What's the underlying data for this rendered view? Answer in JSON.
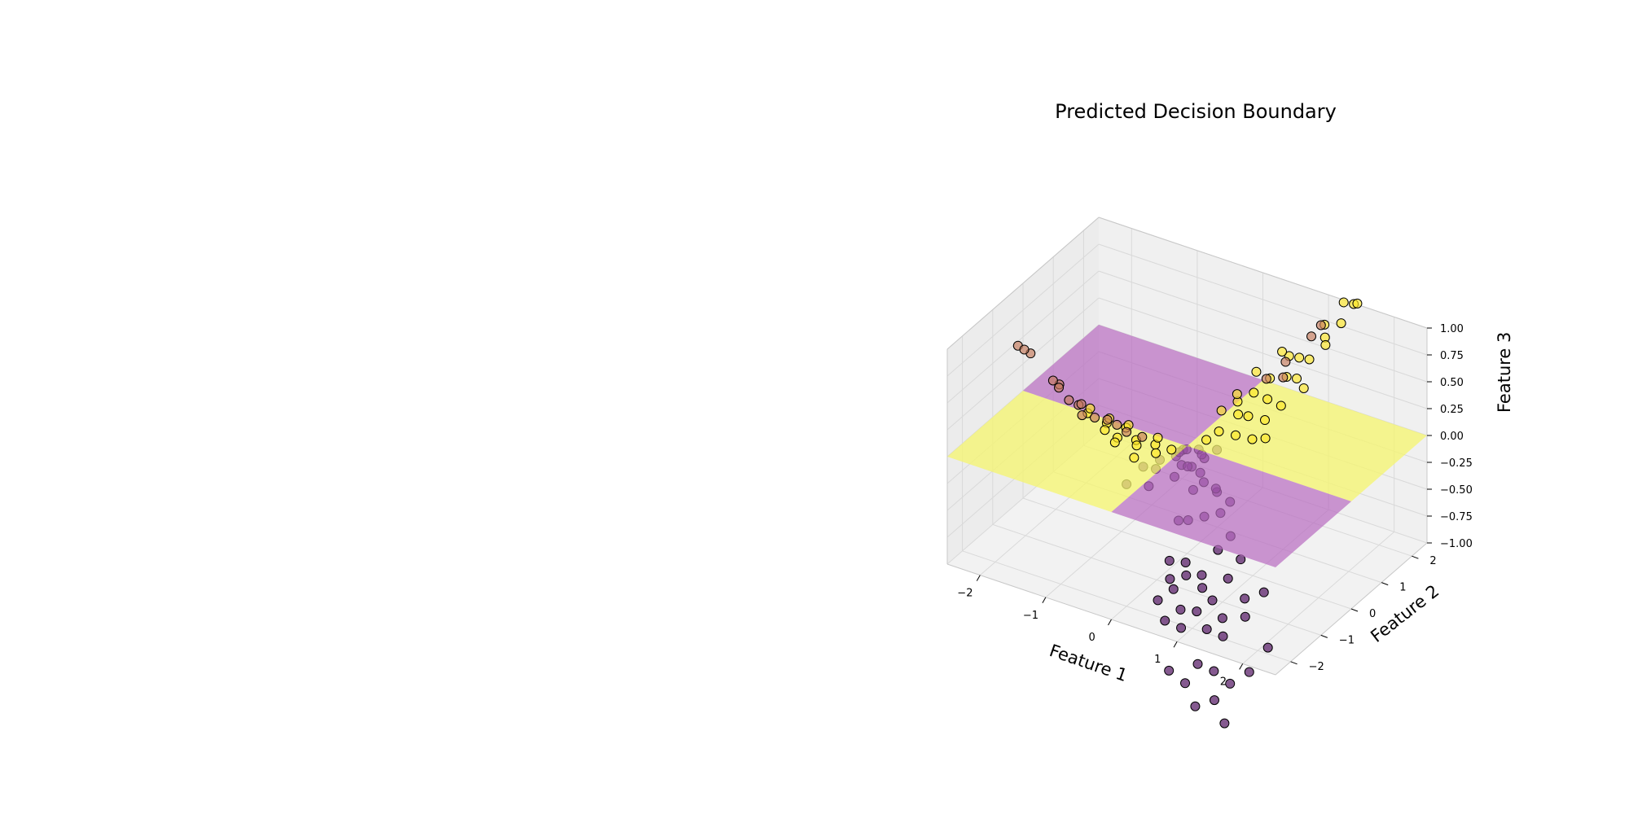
{
  "chart_data": {
    "type": "scatter",
    "projection": "3d",
    "title": "Predicted Decision Boundary",
    "xlabel": "Feature 1",
    "ylabel": "Feature 2",
    "zlabel": "Feature 3",
    "xlim": [
      -2.5,
      2.5
    ],
    "ylim": [
      -2.5,
      2.5
    ],
    "zlim": [
      -1.0,
      1.0
    ],
    "x_ticks": [
      "−2",
      "−1",
      "0",
      "1",
      "2"
    ],
    "y_ticks": [
      "−2",
      "−1",
      "0",
      "1",
      "2"
    ],
    "z_ticks": [
      "−1.00",
      "−0.75",
      "−0.50",
      "−0.25",
      "0.00",
      "0.25",
      "0.50",
      "0.75",
      "1.00"
    ],
    "grid": true,
    "colors": {
      "class_0": "#440154",
      "class_1": "#fde725",
      "boundary_positive": "#f5f56e",
      "boundary_negative": "#b86bc0",
      "pane": "#f2f2f2",
      "grid": "#d9d9d9"
    },
    "decision_surface": {
      "z": 0.0,
      "regions": [
        {
          "x_range": [
            -2.5,
            0.0
          ],
          "y_range": [
            -2.5,
            0.0
          ],
          "class": 1
        },
        {
          "x_range": [
            0.0,
            2.5
          ],
          "y_range": [
            0.0,
            2.5
          ],
          "class": 1
        },
        {
          "x_range": [
            -2.5,
            0.0
          ],
          "y_range": [
            0.0,
            2.5
          ],
          "class": 0
        },
        {
          "x_range": [
            0.0,
            2.5
          ],
          "y_range": [
            -2.5,
            0.0
          ],
          "class": 0
        }
      ]
    },
    "series": [
      {
        "class": 0,
        "points": [
          [
            0.3,
            -0.7,
            -0.85
          ],
          [
            0.5,
            -0.6,
            -0.95
          ],
          [
            0.4,
            -0.9,
            -0.9
          ],
          [
            0.6,
            -0.8,
            -1.0
          ],
          [
            0.7,
            -0.5,
            -0.7
          ],
          [
            0.2,
            -0.4,
            -0.55
          ],
          [
            0.1,
            -0.8,
            -0.85
          ],
          [
            0.8,
            -0.9,
            -1.05
          ],
          [
            0.9,
            -0.6,
            -0.9
          ],
          [
            0.4,
            -0.3,
            -0.5
          ],
          [
            0.6,
            -0.2,
            -0.45
          ],
          [
            0.3,
            -1.1,
            -1.0
          ],
          [
            0.7,
            -1.2,
            -1.1
          ],
          [
            1.0,
            -1.0,
            -1.15
          ],
          [
            0.5,
            -1.3,
            -1.1
          ],
          [
            0.2,
            -1.0,
            -0.95
          ],
          [
            1.2,
            -0.7,
            -1.0
          ],
          [
            0.8,
            -0.3,
            -0.6
          ],
          [
            0.1,
            -0.5,
            -0.55
          ],
          [
            0.5,
            -0.1,
            -0.3
          ],
          [
            0.3,
            -0.1,
            -0.25
          ],
          [
            0.9,
            -1.3,
            -1.2
          ],
          [
            1.1,
            -1.2,
            -1.25
          ],
          [
            0.6,
            -1.5,
            -1.2
          ],
          [
            1.3,
            -0.9,
            -1.1
          ],
          [
            0.4,
            -1.6,
            -1.15
          ],
          [
            0.2,
            -1.4,
            -1.05
          ],
          [
            1.0,
            -0.4,
            -0.75
          ],
          [
            1.4,
            -0.5,
            -0.95
          ],
          [
            0.7,
            -0.1,
            -0.35
          ],
          [
            -0.2,
            0.3,
            -0.15
          ],
          [
            -0.4,
            0.5,
            -0.3
          ],
          [
            -0.3,
            0.8,
            -0.45
          ],
          [
            -0.1,
            0.6,
            -0.2
          ],
          [
            -0.6,
            0.4,
            -0.35
          ],
          [
            -0.5,
            0.9,
            -0.5
          ],
          [
            -0.8,
            0.7,
            -0.55
          ],
          [
            -0.2,
            1.0,
            -0.4
          ],
          [
            -0.7,
            1.1,
            -0.7
          ],
          [
            -0.4,
            1.3,
            -0.65
          ],
          [
            -1.0,
            0.9,
            -0.8
          ],
          [
            -0.9,
            0.5,
            -0.5
          ],
          [
            -0.3,
            1.6,
            -0.85
          ],
          [
            -0.6,
            1.5,
            -0.9
          ],
          [
            -1.2,
            0.6,
            -0.75
          ],
          [
            -0.1,
            1.2,
            -0.35
          ],
          [
            0.9,
            -1.6,
            -1.45
          ],
          [
            1.1,
            -1.5,
            -1.5
          ],
          [
            0.8,
            -1.8,
            -1.6
          ],
          [
            1.2,
            -1.7,
            -1.7
          ],
          [
            1.0,
            -1.9,
            -1.75
          ],
          [
            1.3,
            -1.4,
            -1.6
          ],
          [
            0.6,
            -1.9,
            -1.5
          ],
          [
            1.4,
            -1.8,
            -1.85
          ],
          [
            1.5,
            -1.2,
            -1.5
          ],
          [
            1.6,
            -0.8,
            -1.35
          ],
          [
            0.1,
            -0.2,
            -0.12
          ],
          [
            -0.1,
            0.2,
            -0.1
          ],
          [
            0.2,
            0.05,
            -0.05
          ],
          [
            -0.05,
            -0.15,
            -0.03
          ]
        ]
      },
      {
        "class": 1,
        "points": [
          [
            0.3,
            0.4,
            0.1
          ],
          [
            0.5,
            0.6,
            0.25
          ],
          [
            0.7,
            0.5,
            0.3
          ],
          [
            0.4,
            0.8,
            0.3
          ],
          [
            0.9,
            0.7,
            0.45
          ],
          [
            0.6,
            0.9,
            0.4
          ],
          [
            1.0,
            0.4,
            0.35
          ],
          [
            0.8,
            1.0,
            0.55
          ],
          [
            1.1,
            0.9,
            0.65
          ],
          [
            1.2,
            1.1,
            0.8
          ],
          [
            1.3,
            0.8,
            0.7
          ],
          [
            1.0,
            1.2,
            0.75
          ],
          [
            1.4,
            1.0,
            0.85
          ],
          [
            1.5,
            1.3,
            1.0
          ],
          [
            1.6,
            1.1,
            1.0
          ],
          [
            1.7,
            1.4,
            1.15
          ],
          [
            1.8,
            1.6,
            1.3
          ],
          [
            1.9,
            1.5,
            1.35
          ],
          [
            1.6,
            1.7,
            1.25
          ],
          [
            1.4,
            1.5,
            1.05
          ],
          [
            0.2,
            0.7,
            0.2
          ],
          [
            0.6,
            0.3,
            0.15
          ],
          [
            1.2,
            0.5,
            0.5
          ],
          [
            0.9,
            0.2,
            0.2
          ],
          [
            0.5,
            1.2,
            0.5
          ],
          [
            0.3,
            1.0,
            0.3
          ],
          [
            1.5,
            0.6,
            0.7
          ],
          [
            0.8,
            1.4,
            0.7
          ],
          [
            1.1,
            0.2,
            0.25
          ],
          [
            0.2,
            0.2,
            0.05
          ],
          [
            -0.3,
            -0.4,
            0.05
          ],
          [
            -0.5,
            -0.6,
            0.1
          ],
          [
            -0.7,
            -0.5,
            0.15
          ],
          [
            -0.4,
            -0.8,
            0.12
          ],
          [
            -0.9,
            -0.7,
            0.2
          ],
          [
            -0.6,
            -1.0,
            0.2
          ],
          [
            -1.0,
            -0.4,
            0.15
          ],
          [
            -0.2,
            -0.6,
            0.04
          ],
          [
            -0.8,
            -0.2,
            0.08
          ],
          [
            -0.3,
            -1.1,
            0.1
          ],
          [
            -1.1,
            -0.9,
            0.3
          ],
          [
            -0.5,
            -1.3,
            0.25
          ],
          [
            -1.2,
            -0.6,
            0.25
          ],
          [
            -0.7,
            -1.2,
            0.3
          ],
          [
            -0.1,
            -0.3,
            0.02
          ],
          [
            -0.4,
            -0.1,
            0.02
          ]
        ]
      },
      {
        "class": 0.5,
        "points": [
          [
            -1.6,
            -1.7,
            0.95
          ],
          [
            -1.7,
            -1.9,
            1.05
          ],
          [
            -1.65,
            -1.8,
            1.0
          ],
          [
            -1.3,
            -1.4,
            0.65
          ],
          [
            -1.35,
            -1.5,
            0.7
          ],
          [
            -1.1,
            -1.2,
            0.45
          ],
          [
            -1.0,
            -1.3,
            0.4
          ],
          [
            -0.9,
            -1.1,
            0.35
          ],
          [
            -1.15,
            -1.0,
            0.4
          ],
          [
            -0.8,
            -0.9,
            0.3
          ],
          [
            -0.7,
            -0.8,
            0.25
          ],
          [
            -1.2,
            -1.3,
            0.5
          ],
          [
            -0.6,
            -0.7,
            0.18
          ],
          [
            0.7,
            1.1,
            0.5
          ],
          [
            0.9,
            1.3,
            0.65
          ],
          [
            1.3,
            1.6,
            1.0
          ],
          [
            1.2,
            1.5,
            0.9
          ],
          [
            1.0,
            1.0,
            0.6
          ],
          [
            -1.4,
            -1.2,
            0.55
          ],
          [
            -0.5,
            -0.4,
            0.08
          ]
        ]
      }
    ]
  }
}
